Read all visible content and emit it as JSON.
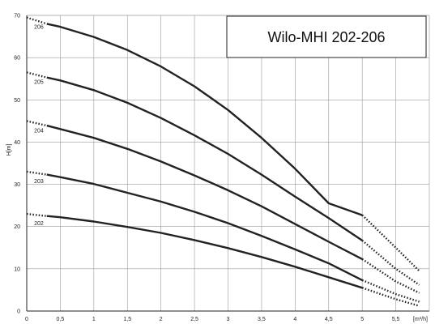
{
  "chart_data": {
    "type": "line",
    "title": "Wilo-MHI 202-206",
    "xlabel": "[m³/h]",
    "ylabel": "H[m]",
    "xlim": [
      0,
      6
    ],
    "ylim": [
      0,
      70
    ],
    "xticks": [
      "0",
      "0,5",
      "1",
      "1,5",
      "2",
      "2,5",
      "3",
      "3,5",
      "4",
      "4,5",
      "5",
      "5,5"
    ],
    "yticks": [
      "0",
      "10",
      "20",
      "30",
      "40",
      "50",
      "60",
      "70"
    ],
    "grid": true,
    "line_color": "#222222",
    "series": [
      {
        "name": "206",
        "x": [
          0,
          0.3,
          0.5,
          1,
          1.5,
          2,
          2.5,
          3,
          3.5,
          4,
          4.5,
          5,
          5.5,
          5.85
        ],
        "values": [
          69.5,
          68,
          67.3,
          64.9,
          61.8,
          57.9,
          53.2,
          47.6,
          41.0,
          33.7,
          25.5,
          22.7,
          15,
          9.5
        ],
        "solid_range": [
          0.3,
          5.0
        ]
      },
      {
        "name": "205",
        "x": [
          0,
          0.3,
          0.5,
          1,
          1.5,
          2,
          2.5,
          3,
          3.5,
          4,
          4.5,
          5,
          5.5,
          5.85
        ],
        "values": [
          56.5,
          55.3,
          54.6,
          52.3,
          49.3,
          45.7,
          41.6,
          37.2,
          32.3,
          27.1,
          22.0,
          16.7,
          10,
          6.2
        ],
        "solid_range": [
          0.3,
          5.0
        ]
      },
      {
        "name": "204",
        "x": [
          0,
          0.3,
          0.5,
          1,
          1.5,
          2,
          2.5,
          3,
          3.5,
          4,
          4.5,
          5,
          5.5,
          5.85
        ],
        "values": [
          45,
          43.9,
          43.1,
          41.0,
          38.4,
          35.4,
          32.1,
          28.6,
          24.8,
          20.6,
          16.4,
          12.3,
          7,
          4.3
        ],
        "solid_range": [
          0.3,
          5.0
        ]
      },
      {
        "name": "203",
        "x": [
          0,
          0.3,
          0.5,
          1,
          1.5,
          2,
          2.5,
          3,
          3.5,
          4,
          4.5,
          5,
          5.5,
          5.85
        ],
        "values": [
          33,
          32.3,
          31.7,
          30.1,
          28.0,
          25.9,
          23.5,
          20.8,
          17.8,
          14.6,
          11.3,
          7.3,
          4,
          2.2
        ],
        "solid_range": [
          0.3,
          5.0
        ]
      },
      {
        "name": "202",
        "x": [
          0,
          0.3,
          0.5,
          1,
          1.5,
          2,
          2.5,
          3,
          3.5,
          4,
          4.5,
          5,
          5.5,
          5.85
        ],
        "values": [
          23,
          22.5,
          22.2,
          21.2,
          19.9,
          18.5,
          16.8,
          14.9,
          12.8,
          10.5,
          8.0,
          5.5,
          2.8,
          1.2
        ],
        "solid_range": [
          0.3,
          5.0
        ]
      }
    ]
  }
}
